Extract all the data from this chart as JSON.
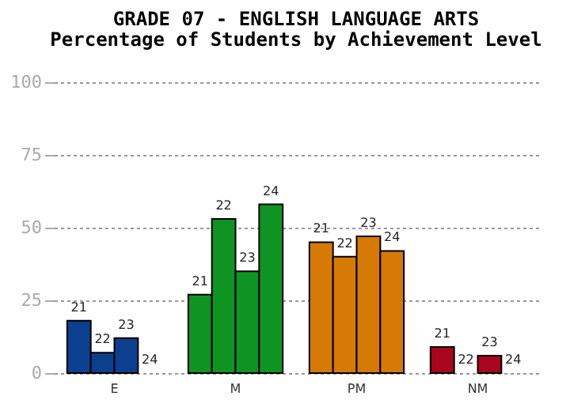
{
  "chart_data": {
    "type": "bar",
    "title": "GRADE 07 - ENGLISH LANGUAGE ARTS",
    "subtitle": "Percentage of Students by Achievement Level",
    "categories": [
      "E",
      "M",
      "PM",
      "NM"
    ],
    "series": [
      {
        "name": "21",
        "colors": [
          "#0d3f8f",
          "#0f9424",
          "#d67a06",
          "#a8051e"
        ],
        "values": [
          18,
          27,
          45,
          9
        ]
      },
      {
        "name": "22",
        "colors": [
          "#0d3f8f",
          "#0f9424",
          "#d67a06",
          "#a8051e"
        ],
        "values": [
          7,
          53,
          40,
          0
        ]
      },
      {
        "name": "23",
        "colors": [
          "#0d3f8f",
          "#0f9424",
          "#d67a06",
          "#a8051e"
        ],
        "values": [
          12,
          35,
          47,
          6
        ]
      },
      {
        "name": "24",
        "colors": [
          "#0d3f8f",
          "#0f9424",
          "#d67a06",
          "#a8051e"
        ],
        "values": [
          0,
          58,
          42,
          0
        ]
      }
    ],
    "ylim": [
      0,
      100
    ],
    "yticks": [
      0,
      25,
      50,
      75,
      100
    ],
    "grid": "y"
  }
}
